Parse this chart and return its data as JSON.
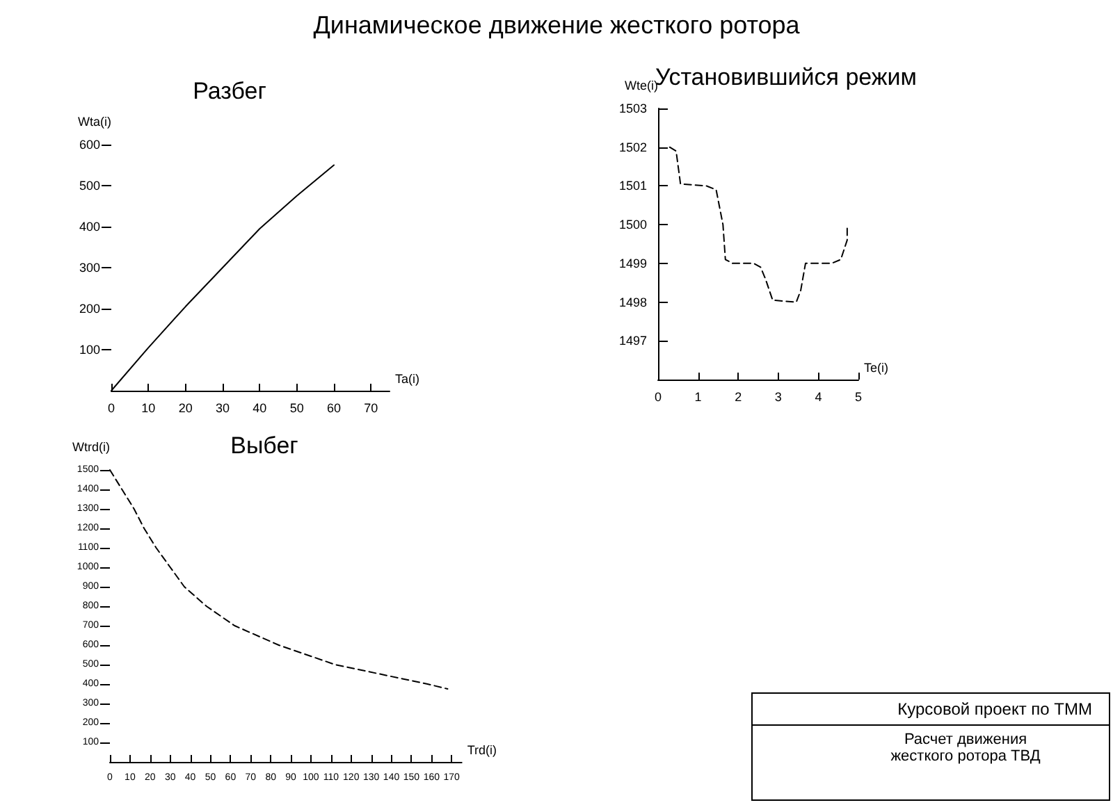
{
  "chart_data": [
    {
      "type": "other",
      "title": "Динамическое движение жесткого ротора"
    },
    {
      "type": "line",
      "title": "Разбег",
      "xlabel": "Ta(i)",
      "ylabel": "Wta(i)",
      "x": [
        0,
        10,
        20,
        30,
        40,
        50,
        60
      ],
      "values": [
        0,
        105,
        205,
        300,
        395,
        475,
        550
      ],
      "color": "#000000",
      "xlim": [
        0,
        75
      ],
      "ylim": [
        0,
        600
      ],
      "xticks": [
        0,
        10,
        20,
        30,
        40,
        50,
        60,
        70
      ],
      "yticks": [
        100,
        200,
        300,
        400,
        500,
        600
      ],
      "grid": false,
      "marker": "none",
      "line_style": "solid"
    },
    {
      "type": "line",
      "title": "Установившийся режим",
      "xlabel": "Te(i)",
      "ylabel": "Wte(i)",
      "x": [
        0.29,
        0.45,
        0.56,
        1.21,
        1.45,
        1.62,
        1.68,
        1.86,
        2.39,
        2.56,
        2.68,
        2.86,
        3.45,
        3.56,
        3.68,
        4.33,
        4.56,
        4.72,
        4.72
      ],
      "values": [
        1502,
        1501.9,
        1501.05,
        1501,
        1500.9,
        1500,
        1499.1,
        1499,
        1499,
        1498.9,
        1498.6,
        1498.05,
        1498,
        1498.3,
        1499,
        1499,
        1499.1,
        1499.6,
        1500
      ],
      "color": "#000000",
      "xlim": [
        0,
        5
      ],
      "ylim": [
        1496,
        1503
      ],
      "xticks": [
        0,
        1,
        2,
        3,
        4,
        5
      ],
      "yticks": [
        1497,
        1498,
        1499,
        1500,
        1501,
        1502,
        1503
      ],
      "grid": false,
      "marker": "none",
      "line_style": "dashed"
    },
    {
      "type": "line",
      "title": "Выбег",
      "xlabel": "Trd(i)",
      "ylabel": "Wtrd(i)",
      "x": [
        0,
        6,
        12,
        17,
        23,
        30,
        37,
        48,
        62,
        84,
        112,
        158,
        168
      ],
      "values": [
        1500,
        1400,
        1300,
        1200,
        1100,
        1000,
        900,
        800,
        700,
        600,
        500,
        400,
        375
      ],
      "color": "#000000",
      "xlim": [
        0,
        175
      ],
      "ylim": [
        0,
        1500
      ],
      "xticks": [
        0,
        10,
        20,
        30,
        40,
        50,
        60,
        70,
        80,
        90,
        100,
        110,
        120,
        130,
        140,
        150,
        160,
        170
      ],
      "yticks": [
        100,
        200,
        300,
        400,
        500,
        600,
        700,
        800,
        900,
        1000,
        1100,
        1200,
        1300,
        1400,
        1500
      ],
      "grid": false,
      "marker": "none",
      "line_style": "dashed"
    },
    {
      "type": "other",
      "title": "Курсовой проект по ТММ",
      "annotations": [
        "Расчет движения жесткого ротора ТВД"
      ]
    }
  ]
}
